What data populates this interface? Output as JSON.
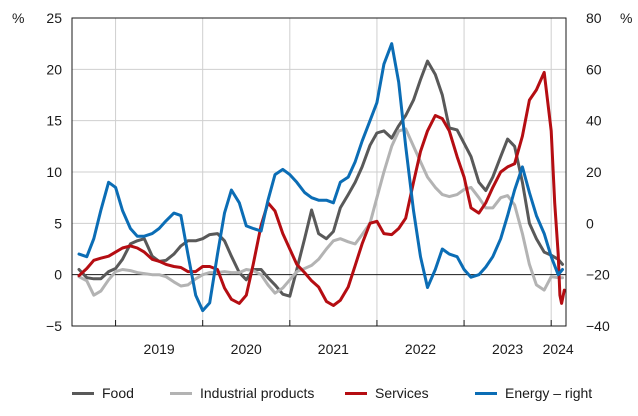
{
  "chart_data": {
    "type": "line",
    "title": "",
    "left_axis": {
      "unit": "%",
      "min": -5,
      "max": 25,
      "ticks": [
        -5,
        0,
        5,
        10,
        15,
        20,
        25
      ]
    },
    "right_axis": {
      "unit": "%",
      "min": -40,
      "max": 80,
      "ticks": [
        -40,
        -20,
        0,
        20,
        40,
        60,
        80
      ]
    },
    "x_labels": [
      {
        "label": "2019",
        "t": 2019.5
      },
      {
        "label": "2020",
        "t": 2020.5
      },
      {
        "label": "2021",
        "t": 2021.5
      },
      {
        "label": "2022",
        "t": 2022.5
      },
      {
        "label": "2023",
        "t": 2023.5
      },
      {
        "label": "2024",
        "t": 2024.08
      }
    ],
    "x_range": [
      2018.5,
      2024.17
    ],
    "year_gridlines": [
      2019,
      2020,
      2021,
      2022,
      2023,
      2024
    ],
    "grid": true,
    "colors": {
      "Food": "#595959",
      "Industrial products": "#b3b3b3",
      "Services": "#b50d12",
      "Energy – right": "#0b6db5"
    },
    "series": [
      {
        "name": "Food",
        "axis": "left",
        "color": "#595959",
        "points": [
          [
            2018.58,
            0.5
          ],
          [
            2018.67,
            -0.3
          ],
          [
            2018.75,
            -0.4
          ],
          [
            2018.83,
            -0.4
          ],
          [
            2018.92,
            0.3
          ],
          [
            2019.0,
            0.6
          ],
          [
            2019.08,
            1.5
          ],
          [
            2019.17,
            3.0
          ],
          [
            2019.25,
            3.3
          ],
          [
            2019.33,
            3.5
          ],
          [
            2019.42,
            1.8
          ],
          [
            2019.5,
            1.3
          ],
          [
            2019.58,
            1.4
          ],
          [
            2019.67,
            2.0
          ],
          [
            2019.75,
            2.8
          ],
          [
            2019.83,
            3.3
          ],
          [
            2019.92,
            3.3
          ],
          [
            2020.0,
            3.5
          ],
          [
            2020.08,
            3.9
          ],
          [
            2020.17,
            4.0
          ],
          [
            2020.25,
            3.3
          ],
          [
            2020.33,
            1.8
          ],
          [
            2020.42,
            0.2
          ],
          [
            2020.5,
            -0.5
          ],
          [
            2020.58,
            0.5
          ],
          [
            2020.67,
            0.5
          ],
          [
            2020.75,
            -0.3
          ],
          [
            2020.83,
            -1.0
          ],
          [
            2020.92,
            -1.9
          ],
          [
            2021.0,
            -2.1
          ],
          [
            2021.08,
            0.5
          ],
          [
            2021.17,
            3.5
          ],
          [
            2021.25,
            6.3
          ],
          [
            2021.33,
            4.0
          ],
          [
            2021.42,
            3.5
          ],
          [
            2021.5,
            4.2
          ],
          [
            2021.58,
            6.5
          ],
          [
            2021.67,
            7.8
          ],
          [
            2021.75,
            9.0
          ],
          [
            2021.83,
            10.5
          ],
          [
            2021.92,
            12.6
          ],
          [
            2022.0,
            13.8
          ],
          [
            2022.08,
            14.0
          ],
          [
            2022.17,
            13.3
          ],
          [
            2022.25,
            14.5
          ],
          [
            2022.33,
            15.5
          ],
          [
            2022.42,
            17.0
          ],
          [
            2022.5,
            19.0
          ],
          [
            2022.58,
            20.8
          ],
          [
            2022.67,
            19.5
          ],
          [
            2022.75,
            17.5
          ],
          [
            2022.83,
            14.3
          ],
          [
            2022.92,
            14.1
          ],
          [
            2023.0,
            12.8
          ],
          [
            2023.08,
            11.5
          ],
          [
            2023.17,
            9.0
          ],
          [
            2023.25,
            8.2
          ],
          [
            2023.33,
            9.5
          ],
          [
            2023.42,
            11.5
          ],
          [
            2023.5,
            13.2
          ],
          [
            2023.58,
            12.5
          ],
          [
            2023.67,
            9.0
          ],
          [
            2023.75,
            5.0
          ],
          [
            2023.83,
            3.5
          ],
          [
            2023.92,
            2.2
          ],
          [
            2024.0,
            1.9
          ],
          [
            2024.08,
            1.5
          ],
          [
            2024.13,
            1.0
          ]
        ]
      },
      {
        "name": "Industrial products",
        "axis": "left",
        "color": "#b3b3b3",
        "points": [
          [
            2018.58,
            -0.2
          ],
          [
            2018.67,
            -0.6
          ],
          [
            2018.75,
            -2.0
          ],
          [
            2018.83,
            -1.6
          ],
          [
            2018.92,
            -0.5
          ],
          [
            2019.0,
            0.3
          ],
          [
            2019.08,
            0.5
          ],
          [
            2019.17,
            0.4
          ],
          [
            2019.25,
            0.2
          ],
          [
            2019.33,
            0.1
          ],
          [
            2019.42,
            0.0
          ],
          [
            2019.5,
            0.0
          ],
          [
            2019.58,
            -0.2
          ],
          [
            2019.67,
            -0.7
          ],
          [
            2019.75,
            -1.1
          ],
          [
            2019.83,
            -1.0
          ],
          [
            2019.92,
            -0.4
          ],
          [
            2020.0,
            0.0
          ],
          [
            2020.08,
            0.2
          ],
          [
            2020.17,
            0.2
          ],
          [
            2020.25,
            0.3
          ],
          [
            2020.33,
            0.2
          ],
          [
            2020.42,
            0.2
          ],
          [
            2020.5,
            0.5
          ],
          [
            2020.58,
            0.4
          ],
          [
            2020.67,
            0.0
          ],
          [
            2020.75,
            -1.0
          ],
          [
            2020.83,
            -1.8
          ],
          [
            2020.92,
            -1.3
          ],
          [
            2021.0,
            -0.5
          ],
          [
            2021.08,
            0.3
          ],
          [
            2021.17,
            0.6
          ],
          [
            2021.25,
            0.9
          ],
          [
            2021.33,
            1.5
          ],
          [
            2021.42,
            2.5
          ],
          [
            2021.5,
            3.3
          ],
          [
            2021.58,
            3.5
          ],
          [
            2021.67,
            3.2
          ],
          [
            2021.75,
            3.0
          ],
          [
            2021.83,
            3.9
          ],
          [
            2021.92,
            5.0
          ],
          [
            2022.0,
            7.5
          ],
          [
            2022.08,
            10.0
          ],
          [
            2022.17,
            12.5
          ],
          [
            2022.25,
            14.0
          ],
          [
            2022.33,
            14.2
          ],
          [
            2022.42,
            12.5
          ],
          [
            2022.5,
            11.0
          ],
          [
            2022.58,
            9.5
          ],
          [
            2022.67,
            8.5
          ],
          [
            2022.75,
            7.8
          ],
          [
            2022.83,
            7.6
          ],
          [
            2022.92,
            7.8
          ],
          [
            2023.0,
            8.3
          ],
          [
            2023.08,
            8.5
          ],
          [
            2023.17,
            7.5
          ],
          [
            2023.25,
            6.5
          ],
          [
            2023.33,
            6.5
          ],
          [
            2023.42,
            7.5
          ],
          [
            2023.5,
            7.7
          ],
          [
            2023.58,
            6.8
          ],
          [
            2023.67,
            4.0
          ],
          [
            2023.75,
            1.0
          ],
          [
            2023.83,
            -1.0
          ],
          [
            2023.92,
            -1.5
          ],
          [
            2024.0,
            -0.2
          ],
          [
            2024.08,
            -0.3
          ],
          [
            2024.13,
            -0.3
          ]
        ]
      },
      {
        "name": "Services",
        "axis": "left",
        "color": "#b50d12",
        "points": [
          [
            2018.58,
            -0.1
          ],
          [
            2018.67,
            0.6
          ],
          [
            2018.75,
            1.4
          ],
          [
            2018.83,
            1.6
          ],
          [
            2018.92,
            1.8
          ],
          [
            2019.0,
            2.2
          ],
          [
            2019.08,
            2.6
          ],
          [
            2019.17,
            2.8
          ],
          [
            2019.25,
            2.6
          ],
          [
            2019.33,
            2.2
          ],
          [
            2019.42,
            1.5
          ],
          [
            2019.5,
            1.3
          ],
          [
            2019.58,
            1.0
          ],
          [
            2019.67,
            0.8
          ],
          [
            2019.75,
            0.7
          ],
          [
            2019.83,
            0.3
          ],
          [
            2019.92,
            0.3
          ],
          [
            2020.0,
            0.8
          ],
          [
            2020.08,
            0.8
          ],
          [
            2020.17,
            0.5
          ],
          [
            2020.25,
            -1.3
          ],
          [
            2020.33,
            -2.4
          ],
          [
            2020.42,
            -2.8
          ],
          [
            2020.5,
            -2.0
          ],
          [
            2020.58,
            1.0
          ],
          [
            2020.67,
            4.8
          ],
          [
            2020.75,
            7.0
          ],
          [
            2020.83,
            6.2
          ],
          [
            2020.92,
            4.0
          ],
          [
            2021.0,
            2.5
          ],
          [
            2021.08,
            1.0
          ],
          [
            2021.17,
            0.2
          ],
          [
            2021.25,
            -0.6
          ],
          [
            2021.33,
            -1.2
          ],
          [
            2021.42,
            -2.6
          ],
          [
            2021.5,
            -3.0
          ],
          [
            2021.58,
            -2.5
          ],
          [
            2021.67,
            -1.2
          ],
          [
            2021.75,
            0.9
          ],
          [
            2021.83,
            3.0
          ],
          [
            2021.92,
            5.0
          ],
          [
            2022.0,
            5.2
          ],
          [
            2022.08,
            4.0
          ],
          [
            2022.17,
            3.9
          ],
          [
            2022.25,
            4.5
          ],
          [
            2022.33,
            5.5
          ],
          [
            2022.42,
            9.0
          ],
          [
            2022.5,
            12.0
          ],
          [
            2022.58,
            14.0
          ],
          [
            2022.67,
            15.5
          ],
          [
            2022.75,
            15.2
          ],
          [
            2022.83,
            14.0
          ],
          [
            2022.92,
            11.5
          ],
          [
            2023.0,
            9.5
          ],
          [
            2023.08,
            6.5
          ],
          [
            2023.17,
            6.0
          ],
          [
            2023.25,
            7.0
          ],
          [
            2023.33,
            8.5
          ],
          [
            2023.42,
            10.0
          ],
          [
            2023.5,
            10.5
          ],
          [
            2023.58,
            10.8
          ],
          [
            2023.67,
            13.5
          ],
          [
            2023.75,
            17.0
          ],
          [
            2023.83,
            18.0
          ],
          [
            2023.92,
            19.7
          ],
          [
            2024.0,
            14.0
          ],
          [
            2024.04,
            7.0
          ],
          [
            2024.08,
            2.0
          ],
          [
            2024.1,
            -2.0
          ],
          [
            2024.12,
            -2.8
          ],
          [
            2024.15,
            -1.5
          ]
        ]
      },
      {
        "name": "Energy – right",
        "axis": "right",
        "color": "#0b6db5",
        "points": [
          [
            2018.58,
            -12
          ],
          [
            2018.67,
            -13
          ],
          [
            2018.75,
            -6
          ],
          [
            2018.83,
            5
          ],
          [
            2018.92,
            16
          ],
          [
            2019.0,
            14
          ],
          [
            2019.08,
            5
          ],
          [
            2019.17,
            -2
          ],
          [
            2019.25,
            -5
          ],
          [
            2019.33,
            -5
          ],
          [
            2019.42,
            -4
          ],
          [
            2019.5,
            -2
          ],
          [
            2019.58,
            1
          ],
          [
            2019.67,
            4
          ],
          [
            2019.75,
            3
          ],
          [
            2019.83,
            -12
          ],
          [
            2019.92,
            -28
          ],
          [
            2020.0,
            -34
          ],
          [
            2020.08,
            -31
          ],
          [
            2020.17,
            -12
          ],
          [
            2020.25,
            4
          ],
          [
            2020.33,
            13
          ],
          [
            2020.42,
            8
          ],
          [
            2020.5,
            -1
          ],
          [
            2020.58,
            -2
          ],
          [
            2020.67,
            -3
          ],
          [
            2020.75,
            9
          ],
          [
            2020.83,
            19
          ],
          [
            2020.92,
            21
          ],
          [
            2021.0,
            19
          ],
          [
            2021.08,
            16
          ],
          [
            2021.17,
            12
          ],
          [
            2021.25,
            10
          ],
          [
            2021.33,
            9
          ],
          [
            2021.42,
            9
          ],
          [
            2021.5,
            8
          ],
          [
            2021.58,
            16
          ],
          [
            2021.67,
            18
          ],
          [
            2021.75,
            24
          ],
          [
            2021.83,
            32
          ],
          [
            2021.92,
            40
          ],
          [
            2022.0,
            47
          ],
          [
            2022.08,
            62
          ],
          [
            2022.17,
            70
          ],
          [
            2022.25,
            55
          ],
          [
            2022.33,
            30
          ],
          [
            2022.42,
            5
          ],
          [
            2022.5,
            -13
          ],
          [
            2022.58,
            -25
          ],
          [
            2022.67,
            -18
          ],
          [
            2022.75,
            -10
          ],
          [
            2022.83,
            -12
          ],
          [
            2022.92,
            -13
          ],
          [
            2023.0,
            -18
          ],
          [
            2023.08,
            -21
          ],
          [
            2023.17,
            -20
          ],
          [
            2023.25,
            -17
          ],
          [
            2023.33,
            -13
          ],
          [
            2023.42,
            -6
          ],
          [
            2023.5,
            3
          ],
          [
            2023.58,
            13
          ],
          [
            2023.67,
            22
          ],
          [
            2023.75,
            12
          ],
          [
            2023.83,
            3
          ],
          [
            2023.92,
            -4
          ],
          [
            2024.0,
            -13
          ],
          [
            2024.08,
            -20
          ],
          [
            2024.13,
            -18
          ]
        ]
      }
    ]
  }
}
